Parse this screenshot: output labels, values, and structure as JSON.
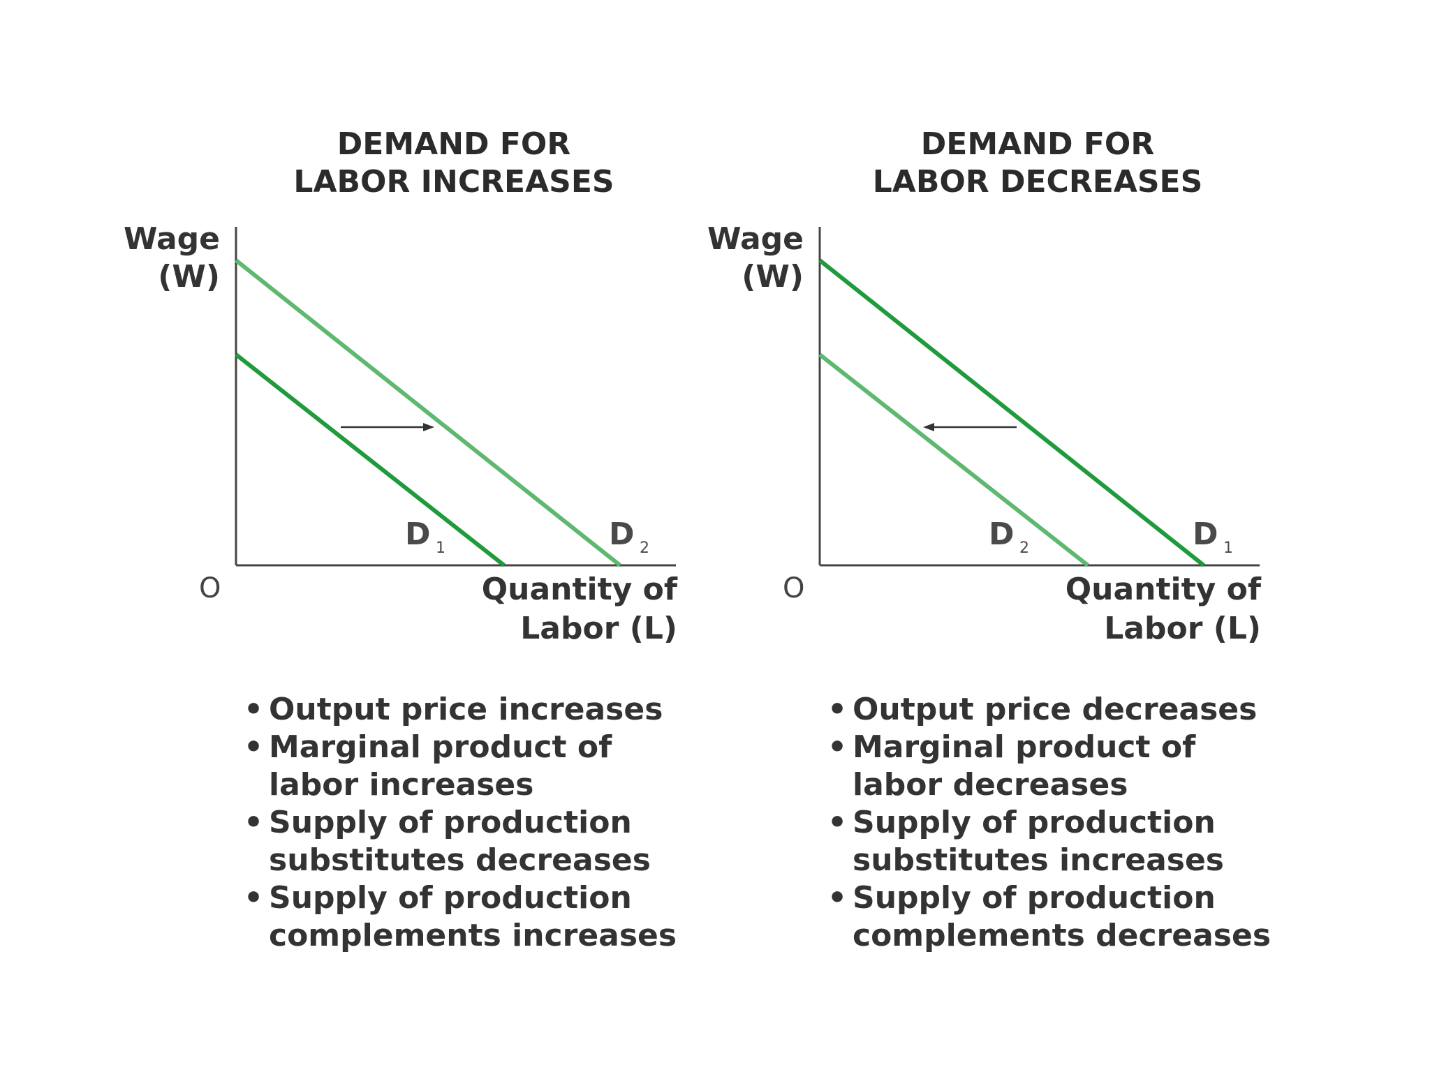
{
  "panels": [
    {
      "title_line1": "DEMAND FOR",
      "title_line2": "LABOR INCREASES",
      "ylabel_line1": "Wage",
      "ylabel_line2": "(W)",
      "origin": "O",
      "xlabel_line1": "Quantity of",
      "xlabel_line2": "Labor (L)",
      "curve_a": {
        "letter": "D",
        "sub": "1"
      },
      "curve_b": {
        "letter": "D",
        "sub": "2"
      },
      "shift": "right",
      "bullets": [
        "Output price increases",
        "Marginal product of\nlabor increases",
        "Supply of production\nsubstitutes decreases",
        "Supply of production\ncomplements increases"
      ]
    },
    {
      "title_line1": "DEMAND FOR",
      "title_line2": "LABOR DECREASES",
      "ylabel_line1": "Wage",
      "ylabel_line2": "(W)",
      "origin": "O",
      "xlabel_line1": "Quantity of",
      "xlabel_line2": "Labor (L)",
      "curve_a": {
        "letter": "D",
        "sub": "2"
      },
      "curve_b": {
        "letter": "D",
        "sub": "1"
      },
      "shift": "left",
      "bullets": [
        "Output price decreases",
        "Marginal product of\nlabor decreases",
        "Supply of production\nsubstitutes increases",
        "Supply of production\ncomplements decreases"
      ]
    }
  ],
  "colors": {
    "dark_green": "#1f9a3c",
    "light_green": "#5fb870",
    "axis": "#444444",
    "arrow": "#333333"
  }
}
